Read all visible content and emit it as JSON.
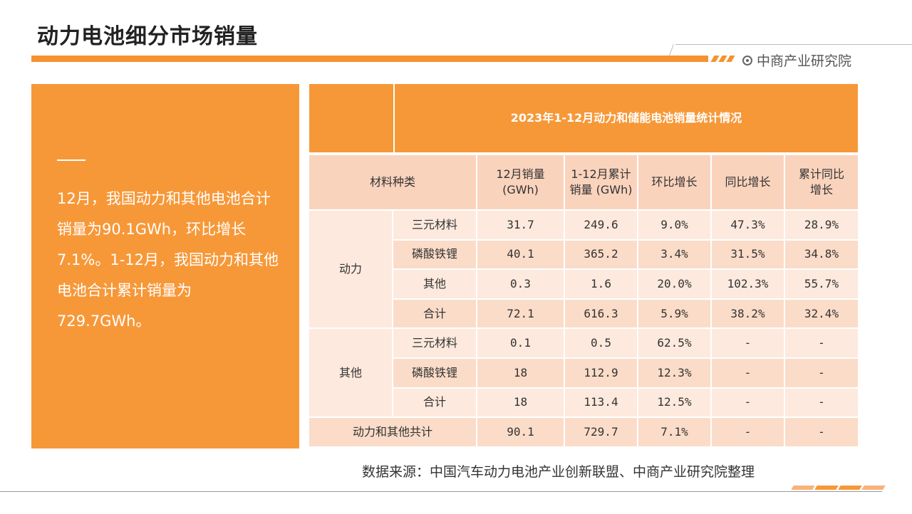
{
  "page": {
    "title": "动力电池细分市场销量"
  },
  "brand": {
    "name": "中商产业研究院",
    "icon": "target-icon"
  },
  "colors": {
    "accent": "#f79838",
    "header_bg": "#fad3bd",
    "row_a": "#fde9dd",
    "row_b": "#fbdcc8"
  },
  "summary": {
    "text": "12月，我国动力和其他电池合计销量为90.1GWh，环比增长7.1%。1-12月，我国动力和其他电池合计累计销量为729.7GWh。"
  },
  "table": {
    "title": "2023年1-12月动力和储能电池销量统计情况",
    "headers": [
      "材料种类",
      "12月销量\n(GWh)",
      "1-12月累计\n销量 (GWh)",
      "环比增长",
      "同比增长",
      "累计同比\n增长"
    ],
    "groups": [
      {
        "name": "动力",
        "rows": [
          {
            "label": "三元材料",
            "values": [
              "31.7",
              "249.6",
              "9.0%",
              "47.3%",
              "28.9%"
            ]
          },
          {
            "label": "磷酸铁锂",
            "values": [
              "40.1",
              "365.2",
              "3.4%",
              "31.5%",
              "34.8%"
            ]
          },
          {
            "label": "其他",
            "values": [
              "0.3",
              "1.6",
              "20.0%",
              "102.3%",
              "55.7%"
            ]
          },
          {
            "label": "合计",
            "values": [
              "72.1",
              "616.3",
              "5.9%",
              "38.2%",
              "32.4%"
            ]
          }
        ]
      },
      {
        "name": "其他",
        "rows": [
          {
            "label": "三元材料",
            "values": [
              "0.1",
              "0.5",
              "62.5%",
              "-",
              "-"
            ]
          },
          {
            "label": "磷酸铁锂",
            "values": [
              "18",
              "112.9",
              "12.3%",
              "-",
              "-"
            ]
          },
          {
            "label": "合计",
            "values": [
              "18",
              "113.4",
              "12.5%",
              "-",
              "-"
            ]
          }
        ]
      }
    ],
    "total": {
      "label": "动力和其他共计",
      "values": [
        "90.1",
        "729.7",
        "7.1%",
        "-",
        "-"
      ]
    }
  },
  "source": "数据来源：中国汽车动力电池产业创新联盟、中商产业研究院整理"
}
